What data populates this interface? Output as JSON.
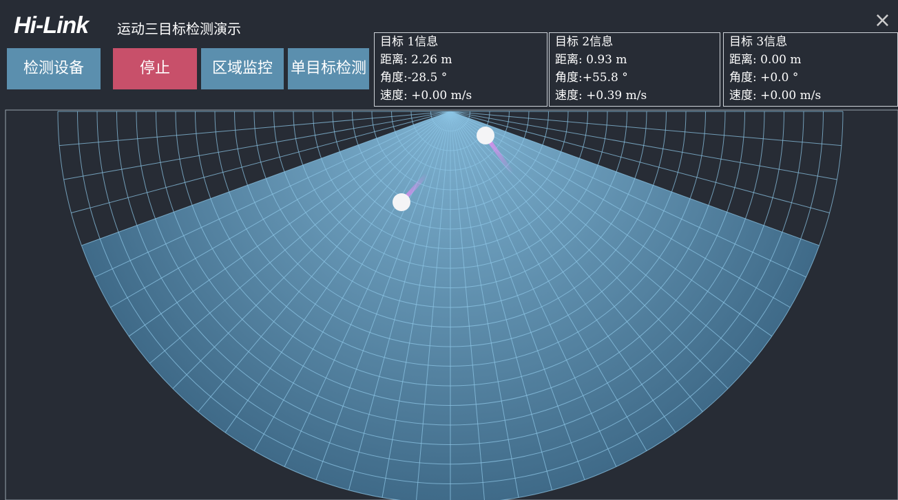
{
  "header": {
    "logo": "Hi-Link",
    "title": "运动三目标检测演示",
    "close": "×"
  },
  "buttons": [
    "检测设备",
    "停止",
    "区域监控",
    "单目标检测"
  ],
  "targets": [
    {
      "title": "目标 1信息",
      "distance": "距离: 2.26 m",
      "angle": "角度:-28.5 °",
      "speed": "速度: +0.00 m/s"
    },
    {
      "title": "目标 2信息",
      "distance": "距离: 0.93 m",
      "angle": "角度:+55.8 °",
      "speed": "速度: +0.39 m/s"
    },
    {
      "title": "目标 3信息",
      "distance": "距离: 0.00 m",
      "angle": "角度: +0.0 °",
      "speed": "速度: +0.00 m/s"
    }
  ]
}
